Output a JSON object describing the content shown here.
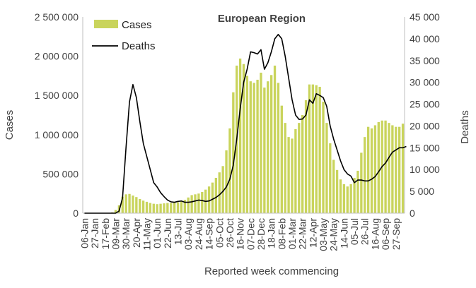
{
  "chart_data": {
    "type": "bar+line",
    "title": "European Region",
    "xlabel": "Reported week commencing",
    "ylabel_left": "Cases",
    "ylabel_right": "Deaths",
    "ylim_left": [
      0,
      2500000
    ],
    "ylim_right": [
      0,
      45000
    ],
    "yticks_left": [
      0,
      500000,
      1000000,
      1500000,
      2000000,
      2500000
    ],
    "yticks_left_labels": [
      "0",
      "500 000",
      "1 000 000",
      "1 500 000",
      "2 000 000",
      "2 500 000"
    ],
    "yticks_right": [
      0,
      5000,
      10000,
      15000,
      20000,
      25000,
      30000,
      35000,
      40000,
      45000
    ],
    "yticks_right_labels": [
      "0",
      "5 000",
      "10 000",
      "15 000",
      "20 000",
      "25 000",
      "30 000",
      "35 000",
      "40 000",
      "45 000"
    ],
    "xtick_labels": [
      "06-Jan",
      "27-Jan",
      "17-Feb",
      "09-Mar",
      "30-Mar",
      "20-Apr",
      "11-May",
      "01-Jun",
      "22-Jun",
      "13-Jul",
      "03-Aug",
      "24-Aug",
      "14-Sep",
      "05-Oct",
      "26-Oct",
      "16-Nov",
      "07-Dec",
      "28-Dec",
      "18-Jan",
      "08-Feb",
      "01-Mar",
      "22-Mar",
      "12-Apr",
      "03-May",
      "24-May",
      "14-Jun",
      "05-Jul",
      "26-Jul",
      "16-Aug",
      "06-Sep",
      "27-Sep"
    ],
    "grid": false,
    "legend": "top-left",
    "colors": {
      "cases": "#c9d45c",
      "deaths": "#000000",
      "axis": "#bfbfbf",
      "text": "#404040"
    },
    "series": [
      {
        "name": "Cases",
        "type": "bar",
        "axis": "left",
        "values": [
          0,
          0,
          0,
          0,
          0,
          0,
          0,
          2000,
          10000,
          40000,
          100000,
          210000,
          240000,
          245000,
          225000,
          205000,
          180000,
          160000,
          145000,
          130000,
          120000,
          115000,
          120000,
          125000,
          130000,
          130000,
          135000,
          140000,
          150000,
          170000,
          200000,
          230000,
          240000,
          250000,
          270000,
          300000,
          340000,
          390000,
          450000,
          520000,
          600000,
          800000,
          1080000,
          1540000,
          1880000,
          1970000,
          1900000,
          1750000,
          1680000,
          1660000,
          1700000,
          1790000,
          1600000,
          1680000,
          1760000,
          1880000,
          1660000,
          1370000,
          1150000,
          970000,
          950000,
          1070000,
          1150000,
          1250000,
          1440000,
          1640000,
          1640000,
          1630000,
          1610000,
          1420000,
          1150000,
          890000,
          680000,
          550000,
          430000,
          370000,
          340000,
          370000,
          450000,
          540000,
          770000,
          970000,
          1100000,
          1080000,
          1120000,
          1160000,
          1180000,
          1180000,
          1150000,
          1120000,
          1100000,
          1100000,
          1140000
        ]
      },
      {
        "name": "Deaths",
        "type": "line",
        "axis": "right",
        "values": [
          0,
          0,
          0,
          0,
          0,
          0,
          0,
          0,
          0,
          0,
          500,
          3500,
          15000,
          25500,
          29500,
          26500,
          21000,
          16000,
          13000,
          10000,
          7000,
          6000,
          4700,
          3800,
          3000,
          2600,
          2500,
          2700,
          2800,
          2500,
          2500,
          2600,
          2800,
          3000,
          2900,
          2700,
          2800,
          3200,
          3600,
          4200,
          5000,
          6000,
          7800,
          11000,
          17000,
          24000,
          30000,
          33000,
          37000,
          36800,
          36500,
          37500,
          33000,
          34500,
          37000,
          40000,
          41000,
          40000,
          36000,
          31000,
          26000,
          22500,
          21500,
          21600,
          22500,
          26000,
          25200,
          27400,
          27000,
          26500,
          24500,
          20000,
          17000,
          14500,
          12000,
          10000,
          9000,
          8500,
          7000,
          7600,
          7600,
          7400,
          7400,
          7800,
          8400,
          9500,
          10700,
          11500,
          12800,
          14000,
          14500,
          15000,
          15000,
          15300
        ]
      }
    ]
  }
}
